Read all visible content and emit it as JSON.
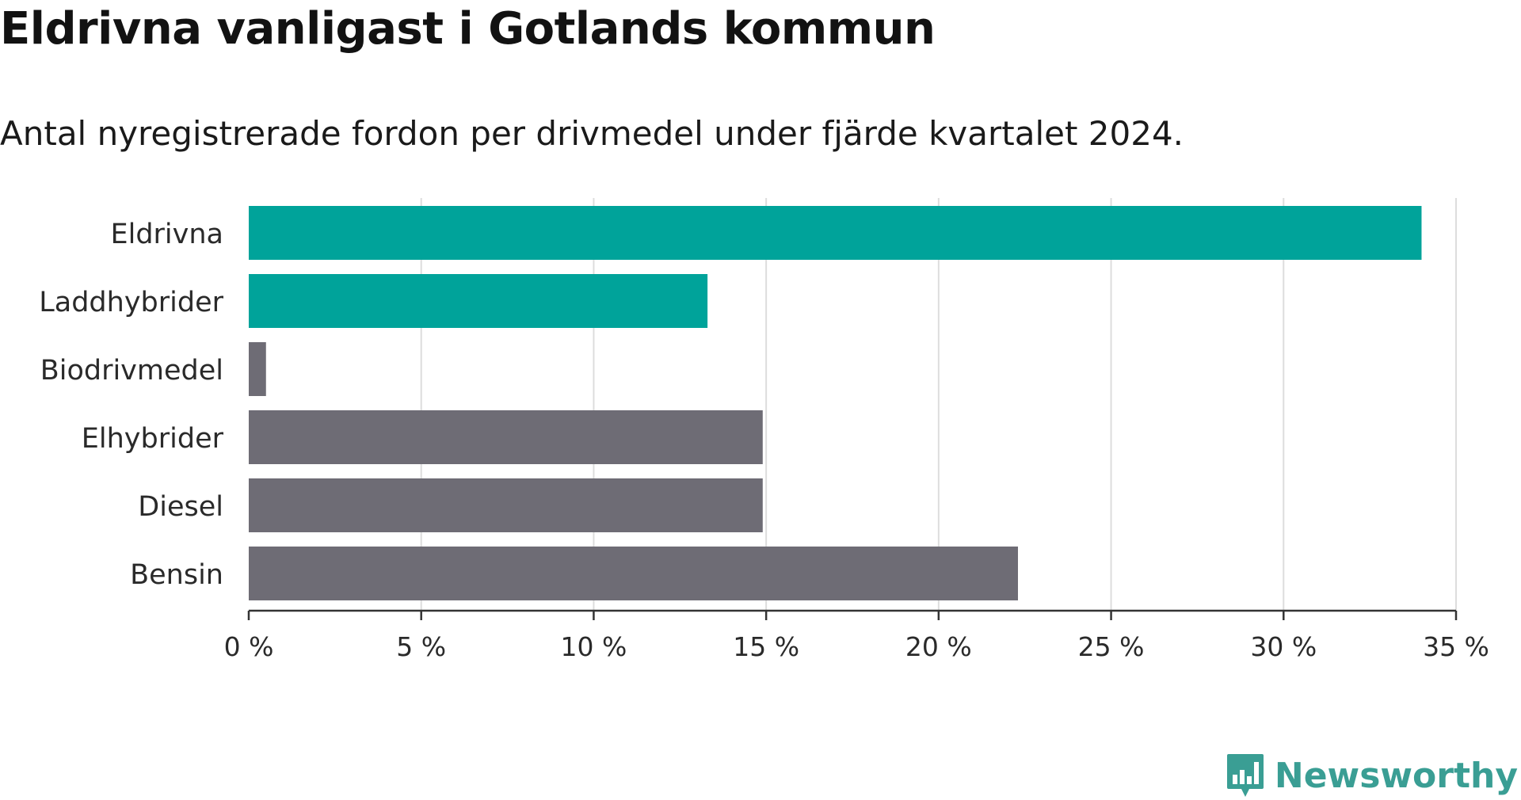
{
  "title": "Eldrivna vanligast i Gotlands kommun",
  "subtitle": "Antal nyregistrerade fordon per drivmedel under fjärde kvartalet 2024.",
  "logo": {
    "text": "Newsworthy",
    "icon": "newsworthy-chart-icon",
    "color": "#3a9e94"
  },
  "colors": {
    "highlight": "#00a39a",
    "default": "#6e6c75",
    "grid": "#dddddd",
    "axis": "#333333"
  },
  "chart_data": {
    "type": "bar",
    "orientation": "horizontal",
    "categories": [
      "Eldrivna",
      "Laddhybrider",
      "Biodrivmedel",
      "Elhybrider",
      "Diesel",
      "Bensin"
    ],
    "values": [
      34.0,
      13.3,
      0.5,
      14.9,
      14.9,
      22.3
    ],
    "highlighted": [
      true,
      true,
      false,
      false,
      false,
      false
    ],
    "xlim": [
      0,
      35
    ],
    "xticks": [
      0,
      5,
      10,
      15,
      20,
      25,
      30,
      35
    ],
    "xtick_labels": [
      "0 %",
      "5 %",
      "10 %",
      "15 %",
      "20 %",
      "25 %",
      "30 %",
      "35 %"
    ],
    "grid": true,
    "xlabel": "",
    "ylabel": ""
  }
}
